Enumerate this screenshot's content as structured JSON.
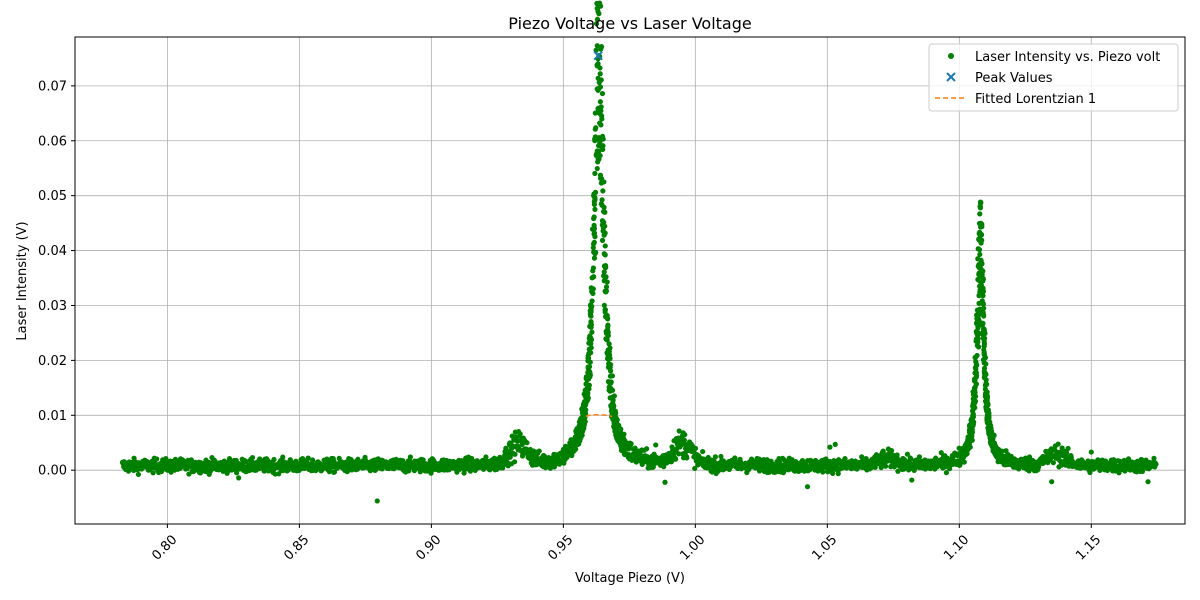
{
  "chart_data": {
    "type": "scatter",
    "title": "Piezo Voltage vs Laser Voltage",
    "xlabel": "Voltage Piezo (V)",
    "ylabel": "Laser Intensity (V)",
    "xlim": [
      0.765,
      1.1855
    ],
    "ylim": [
      -0.0098,
      0.0789
    ],
    "x_ticks": [
      0.8,
      0.85,
      0.9,
      0.95,
      1.0,
      1.05,
      1.1,
      1.15
    ],
    "x_tick_labels": [
      "0.80",
      "0.85",
      "0.90",
      "0.95",
      "1.00",
      "1.05",
      "1.10",
      "1.15"
    ],
    "x_tick_rotation_deg": 45,
    "y_ticks": [
      0.0,
      0.01,
      0.02,
      0.03,
      0.04,
      0.05,
      0.06,
      0.07
    ],
    "y_tick_labels": [
      "0.00",
      "0.01",
      "0.02",
      "0.03",
      "0.04",
      "0.05",
      "0.06",
      "0.07"
    ],
    "grid": true,
    "legend_position": "top-right",
    "series": [
      {
        "name": "Laser Intensity vs. Piezo volt",
        "kind": "scatter",
        "marker": "dot",
        "color": "#008000",
        "x_range": [
          0.783,
          1.1745
        ],
        "peaks": [
          {
            "x": 0.9635,
            "height": 0.0755,
            "width": 0.0022
          },
          {
            "x": 1.108,
            "height": 0.04,
            "width": 0.0016
          }
        ],
        "bumps": [
          {
            "x": 0.933,
            "height": 0.0035
          },
          {
            "x": 0.995,
            "height": 0.0038
          },
          {
            "x": 1.073,
            "height": 0.0012
          },
          {
            "x": 1.137,
            "height": 0.002
          }
        ],
        "outliers": [
          {
            "x": 0.8795,
            "y": -0.0056
          },
          {
            "x": 0.9885,
            "y": -0.0022
          },
          {
            "x": 1.0425,
            "y": -0.003
          },
          {
            "x": 1.051,
            "y": 0.0042
          },
          {
            "x": 1.053,
            "y": 0.0047
          },
          {
            "x": 1.135,
            "y": -0.0021
          },
          {
            "x": 1.15,
            "y": 0.0033
          },
          {
            "x": 1.1715,
            "y": -0.0021
          },
          {
            "x": 1.082,
            "y": -0.0018
          },
          {
            "x": 0.827,
            "y": -0.0014
          },
          {
            "x": 0.985,
            "y": 0.0046
          }
        ]
      },
      {
        "name": "Peak Values",
        "kind": "scatter",
        "marker": "x",
        "color": "#1f77b4",
        "points": [
          {
            "x": 0.9632,
            "y": 0.0755
          }
        ]
      },
      {
        "name": "Fitted Lorentzian 1",
        "kind": "line",
        "style": "dashed",
        "color": "#ff7f0e",
        "points": [
          {
            "x": 0.9585,
            "y": 0.0098
          },
          {
            "x": 0.96,
            "y": 0.01
          },
          {
            "x": 0.962,
            "y": 0.0101
          },
          {
            "x": 0.964,
            "y": 0.0101
          },
          {
            "x": 0.966,
            "y": 0.01
          },
          {
            "x": 0.9685,
            "y": 0.0098
          }
        ]
      }
    ]
  }
}
